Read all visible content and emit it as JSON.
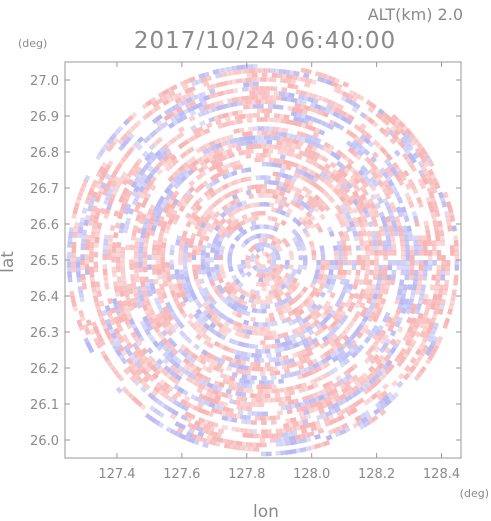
{
  "header": {
    "altitude_label": "ALT(km) 2.0",
    "timestamp": "2017/10/24 06:40:00"
  },
  "chart_data": {
    "type": "heatmap",
    "title": "2017/10/24 06:40:00",
    "subtitle": "ALT(km) 2.0",
    "xlabel": "lon",
    "ylabel": "lat",
    "x_unit": "(deg)",
    "y_unit": "(deg)",
    "xlim": [
      127.24,
      128.46
    ],
    "ylim": [
      25.95,
      27.05
    ],
    "x_ticks": [
      127.4,
      127.6,
      127.8,
      128.0,
      128.2,
      128.4
    ],
    "x_tick_labels": [
      "127.4",
      "127.6",
      "127.8",
      "128.0",
      "128.2",
      "128.4"
    ],
    "y_ticks": [
      26.0,
      26.1,
      26.2,
      26.3,
      26.4,
      26.5,
      26.6,
      26.7,
      26.8,
      26.9,
      27.0
    ],
    "y_tick_labels": [
      "26.0",
      "26.1",
      "26.2",
      "26.3",
      "26.4",
      "26.5",
      "26.6",
      "26.7",
      "26.8",
      "26.9",
      "27.0"
    ],
    "radar_center": {
      "lon": 127.85,
      "lat": 26.5
    },
    "radar_radius_deg_lat": 0.545,
    "grid": false,
    "colors": {
      "positive": "#f7b0b0",
      "negative": "#b4b4f2",
      "neutral": "#ffffff",
      "axis": "#999999",
      "text": "#8a8a8a"
    }
  }
}
